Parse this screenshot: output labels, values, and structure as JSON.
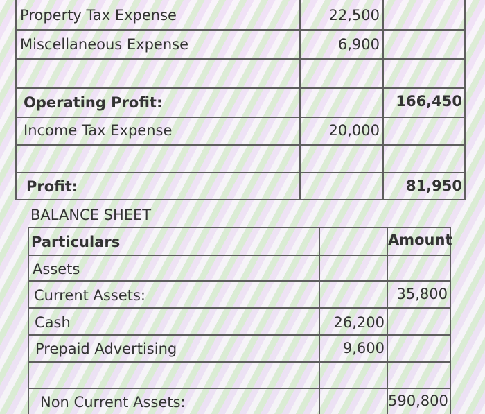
{
  "income_statement": {
    "rows": [
      {
        "label": "Property Tax Expense",
        "amount": "22,500",
        "total": ""
      },
      {
        "label": "Miscellaneous Expense",
        "amount": "6,900",
        "total": ""
      },
      {
        "label": "Operating Profit:",
        "amount": "",
        "total": "166,450"
      },
      {
        "label": "Income Tax Expense",
        "amount": "20,000",
        "total": ""
      },
      {
        "label": "Profit:",
        "amount": "",
        "total": "81,950"
      }
    ]
  },
  "balance_sheet": {
    "title": "BALANCE SHEET",
    "header": {
      "particulars": "Particulars",
      "amount": "Amount"
    },
    "rows": [
      {
        "label": "Assets",
        "amount": "",
        "total": ""
      },
      {
        "label": "Current Assets:",
        "amount": "",
        "total": "35,800"
      },
      {
        "label": "Cash",
        "amount": "26,200",
        "total": ""
      },
      {
        "label": "Prepaid Advertising",
        "amount": "9,600",
        "total": ""
      },
      {
        "label": "Non Current Assets:",
        "amount": "",
        "total": "590,800"
      }
    ]
  }
}
